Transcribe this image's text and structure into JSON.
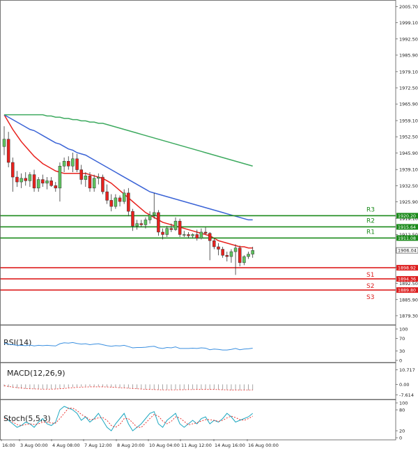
{
  "chart_data": {
    "type": "candlestick",
    "price_axis": {
      "ylim": [
        1877.0,
        2007.0
      ],
      "ticks": [
        "2005.70",
        "1999.10",
        "1992.50",
        "1985.90",
        "1979.10",
        "1972.50",
        "1965.90",
        "1959.10",
        "1952.50",
        "1945.90",
        "1939.10",
        "1932.50",
        "1925.90",
        "1919.10",
        "1912.50",
        "1906.04",
        "1899.10",
        "1892.50",
        "1885.90",
        "1879.30"
      ],
      "current": "1906.04"
    },
    "x_axis_labels": [
      "16:00",
      "3 Aug 00:00",
      "4 Aug 08:00",
      "7 Aug 12:00",
      "8 Aug 20:00",
      "10 Aug 04:00",
      "11 Aug 12:00",
      "14 Aug 16:00",
      "16 Aug 00:00"
    ],
    "candles": [
      {
        "o": 1948.5,
        "h": 1956.8,
        "l": 1945.0,
        "c": 1951.5
      },
      {
        "o": 1951.5,
        "h": 1954.5,
        "l": 1940.0,
        "c": 1942.0
      },
      {
        "o": 1942.0,
        "h": 1944.0,
        "l": 1930.0,
        "c": 1936.0
      },
      {
        "o": 1936.0,
        "h": 1938.5,
        "l": 1932.0,
        "c": 1934.0
      },
      {
        "o": 1934.0,
        "h": 1937.5,
        "l": 1931.5,
        "c": 1935.5
      },
      {
        "o": 1935.5,
        "h": 1938.0,
        "l": 1932.5,
        "c": 1934.5
      },
      {
        "o": 1934.5,
        "h": 1938.0,
        "l": 1932.0,
        "c": 1937.0
      },
      {
        "o": 1937.0,
        "h": 1939.0,
        "l": 1930.0,
        "c": 1931.5
      },
      {
        "o": 1931.5,
        "h": 1936.0,
        "l": 1930.0,
        "c": 1935.0
      },
      {
        "o": 1935.0,
        "h": 1937.0,
        "l": 1932.0,
        "c": 1933.5
      },
      {
        "o": 1933.5,
        "h": 1936.0,
        "l": 1931.0,
        "c": 1934.5
      },
      {
        "o": 1934.5,
        "h": 1936.0,
        "l": 1932.0,
        "c": 1932.5
      },
      {
        "o": 1932.5,
        "h": 1934.0,
        "l": 1930.0,
        "c": 1931.5
      },
      {
        "o": 1931.5,
        "h": 1942.0,
        "l": 1926.0,
        "c": 1940.5
      },
      {
        "o": 1940.5,
        "h": 1944.0,
        "l": 1938.0,
        "c": 1942.5
      },
      {
        "o": 1942.5,
        "h": 1944.5,
        "l": 1939.0,
        "c": 1940.5
      },
      {
        "o": 1940.5,
        "h": 1946.0,
        "l": 1938.0,
        "c": 1943.5
      },
      {
        "o": 1943.5,
        "h": 1945.5,
        "l": 1938.0,
        "c": 1939.0
      },
      {
        "o": 1939.0,
        "h": 1941.0,
        "l": 1933.0,
        "c": 1935.0
      },
      {
        "o": 1935.0,
        "h": 1938.0,
        "l": 1932.0,
        "c": 1936.5
      },
      {
        "o": 1936.5,
        "h": 1938.0,
        "l": 1930.0,
        "c": 1931.5
      },
      {
        "o": 1931.5,
        "h": 1937.0,
        "l": 1930.0,
        "c": 1935.5
      },
      {
        "o": 1935.5,
        "h": 1937.5,
        "l": 1933.0,
        "c": 1936.0
      },
      {
        "o": 1936.0,
        "h": 1937.0,
        "l": 1929.0,
        "c": 1930.0
      },
      {
        "o": 1930.0,
        "h": 1933.0,
        "l": 1925.0,
        "c": 1926.5
      },
      {
        "o": 1926.5,
        "h": 1929.0,
        "l": 1922.0,
        "c": 1924.0
      },
      {
        "o": 1924.0,
        "h": 1929.0,
        "l": 1923.0,
        "c": 1927.5
      },
      {
        "o": 1927.5,
        "h": 1928.5,
        "l": 1924.0,
        "c": 1926.0
      },
      {
        "o": 1926.0,
        "h": 1931.0,
        "l": 1925.0,
        "c": 1929.5
      },
      {
        "o": 1929.5,
        "h": 1931.5,
        "l": 1920.0,
        "c": 1922.0
      },
      {
        "o": 1922.0,
        "h": 1923.0,
        "l": 1914.0,
        "c": 1916.0
      },
      {
        "o": 1916.0,
        "h": 1918.5,
        "l": 1914.5,
        "c": 1917.0
      },
      {
        "o": 1917.0,
        "h": 1918.5,
        "l": 1915.5,
        "c": 1916.5
      },
      {
        "o": 1916.5,
        "h": 1919.5,
        "l": 1915.0,
        "c": 1918.5
      },
      {
        "o": 1918.5,
        "h": 1922.0,
        "l": 1917.0,
        "c": 1920.5
      },
      {
        "o": 1920.5,
        "h": 1929.5,
        "l": 1919.0,
        "c": 1921.5
      },
      {
        "o": 1921.5,
        "h": 1922.5,
        "l": 1912.0,
        "c": 1913.5
      },
      {
        "o": 1913.5,
        "h": 1915.0,
        "l": 1910.5,
        "c": 1912.5
      },
      {
        "o": 1912.5,
        "h": 1916.0,
        "l": 1911.5,
        "c": 1915.0
      },
      {
        "o": 1915.0,
        "h": 1917.0,
        "l": 1913.5,
        "c": 1914.5
      },
      {
        "o": 1914.5,
        "h": 1919.5,
        "l": 1914.0,
        "c": 1918.0
      },
      {
        "o": 1918.0,
        "h": 1919.0,
        "l": 1911.5,
        "c": 1912.5
      },
      {
        "o": 1912.5,
        "h": 1914.0,
        "l": 1911.5,
        "c": 1912.5
      },
      {
        "o": 1912.5,
        "h": 1913.5,
        "l": 1911.0,
        "c": 1912.0
      },
      {
        "o": 1912.0,
        "h": 1913.0,
        "l": 1911.0,
        "c": 1912.5
      },
      {
        "o": 1912.5,
        "h": 1914.5,
        "l": 1910.0,
        "c": 1911.0
      },
      {
        "o": 1911.0,
        "h": 1915.0,
        "l": 1910.5,
        "c": 1913.5
      },
      {
        "o": 1913.5,
        "h": 1915.5,
        "l": 1912.5,
        "c": 1913.0
      },
      {
        "o": 1913.0,
        "h": 1913.5,
        "l": 1902.0,
        "c": 1910.0
      },
      {
        "o": 1910.0,
        "h": 1911.0,
        "l": 1906.5,
        "c": 1907.5
      },
      {
        "o": 1907.5,
        "h": 1909.0,
        "l": 1904.0,
        "c": 1906.5
      },
      {
        "o": 1906.5,
        "h": 1907.5,
        "l": 1903.0,
        "c": 1904.0
      },
      {
        "o": 1904.0,
        "h": 1905.5,
        "l": 1901.5,
        "c": 1903.5
      },
      {
        "o": 1903.5,
        "h": 1906.5,
        "l": 1901.0,
        "c": 1905.5
      },
      {
        "o": 1905.5,
        "h": 1908.5,
        "l": 1896.0,
        "c": 1907.0
      },
      {
        "o": 1907.0,
        "h": 1908.0,
        "l": 1899.5,
        "c": 1901.0
      },
      {
        "o": 1901.0,
        "h": 1904.0,
        "l": 1900.0,
        "c": 1903.5
      },
      {
        "o": 1903.5,
        "h": 1905.5,
        "l": 1902.5,
        "c": 1904.5
      },
      {
        "o": 1904.5,
        "h": 1907.5,
        "l": 1903.0,
        "c": 1906.0
      }
    ],
    "moving_averages": [
      {
        "color": "#e8211d",
        "values": [
          1961.5,
          1958.5,
          1955.5,
          1953.0,
          1950.5,
          1948.5,
          1946.5,
          1944.5,
          1943.0,
          1941.5,
          1940.5,
          1939.5,
          1938.5,
          1938.0,
          1937.5,
          1937.5,
          1937.5,
          1937.5,
          1937.5,
          1937.5,
          1937.0,
          1936.5,
          1936.0,
          1935.5,
          1934.5,
          1933.5,
          1932.0,
          1930.5,
          1929.0,
          1927.5,
          1926.0,
          1924.5,
          1923.0,
          1921.5,
          1920.5,
          1919.5,
          1918.5,
          1917.5,
          1917.0,
          1916.5,
          1916.0,
          1915.5,
          1915.0,
          1914.5,
          1914.0,
          1913.5,
          1913.0,
          1912.5,
          1912.0,
          1911.0,
          1910.0,
          1909.5,
          1909.0,
          1908.5,
          1908.0,
          1907.5,
          1907.5,
          1907.0,
          1907.0
        ]
      },
      {
        "color": "#3a63d6",
        "values": [
          1961.5,
          1960.5,
          1959.5,
          1958.5,
          1957.5,
          1956.5,
          1955.5,
          1955.0,
          1954.0,
          1953.0,
          1952.0,
          1951.0,
          1950.0,
          1949.5,
          1948.5,
          1947.5,
          1947.0,
          1946.0,
          1945.5,
          1945.0,
          1944.0,
          1943.0,
          1942.0,
          1941.0,
          1940.0,
          1939.0,
          1938.0,
          1937.0,
          1936.0,
          1935.0,
          1934.0,
          1933.0,
          1932.0,
          1931.0,
          1930.0,
          1929.5,
          1929.0,
          1928.5,
          1928.0,
          1927.5,
          1927.0,
          1926.5,
          1926.0,
          1925.5,
          1925.0,
          1924.5,
          1924.0,
          1923.5,
          1923.0,
          1922.5,
          1922.0,
          1921.5,
          1921.0,
          1920.5,
          1920.0,
          1919.5,
          1919.0,
          1918.5,
          1918.5
        ]
      },
      {
        "color": "#3daa5f",
        "values": [
          1961.5,
          1961.5,
          1961.5,
          1961.5,
          1961.5,
          1961.5,
          1961.5,
          1961.5,
          1961.5,
          1961.5,
          1961.0,
          1961.0,
          1960.5,
          1960.5,
          1960.0,
          1960.0,
          1959.5,
          1959.5,
          1959.0,
          1959.0,
          1958.5,
          1958.5,
          1958.0,
          1958.0,
          1957.5,
          1957.0,
          1956.5,
          1956.0,
          1955.5,
          1955.0,
          1954.5,
          1954.0,
          1953.5,
          1953.0,
          1952.5,
          1952.0,
          1951.5,
          1951.0,
          1950.5,
          1950.0,
          1949.5,
          1949.0,
          1948.5,
          1948.0,
          1947.5,
          1947.0,
          1946.5,
          1946.0,
          1945.5,
          1945.0,
          1944.5,
          1944.0,
          1943.5,
          1943.0,
          1942.5,
          1942.0,
          1941.5,
          1941.0,
          1940.5
        ]
      }
    ],
    "levels": [
      {
        "label": "R3",
        "value": 1920.2,
        "tag": "1920.20",
        "color": "#1a8a1a"
      },
      {
        "label": "R2",
        "value": 1915.64,
        "tag": "1915.64",
        "color": "#1a8a1a"
      },
      {
        "label": "R1",
        "value": 1911.08,
        "tag": "1911.08",
        "color": "#1a8a1a"
      },
      {
        "label": "S1",
        "value": 1898.92,
        "tag": "1898.92",
        "color": "#dd1e1e"
      },
      {
        "label": "S2",
        "value": 1894.36,
        "tag": "1894.36",
        "color": "#dd1e1e"
      },
      {
        "label": "S3",
        "value": 1889.8,
        "tag": "1889.80",
        "color": "#dd1e1e"
      }
    ],
    "rsi": {
      "title": "RSI(14)",
      "ticks": [
        "100",
        "70",
        "30",
        "0"
      ],
      "ylim": [
        0,
        100
      ],
      "values": [
        55,
        52,
        50,
        48,
        48,
        47,
        49,
        46,
        48,
        47,
        48,
        47,
        46,
        53,
        56,
        55,
        57,
        54,
        52,
        53,
        50,
        52,
        53,
        50,
        47,
        45,
        47,
        46,
        48,
        44,
        40,
        41,
        41,
        42,
        44,
        45,
        40,
        38,
        41,
        40,
        43,
        38,
        38,
        38,
        39,
        38,
        40,
        39,
        34,
        36,
        35,
        33,
        33,
        35,
        38,
        34,
        36,
        37,
        39
      ]
    },
    "macd": {
      "title": "MACD(12,26,9)",
      "ticks": [
        "10.717",
        "0.00",
        "-7.614"
      ],
      "ylim": [
        -9.5,
        12.5
      ],
      "hist": [
        -1.5,
        -2.0,
        -2.5,
        -2.8,
        -3.0,
        -3.2,
        -3.3,
        -3.4,
        -3.5,
        -3.5,
        -3.5,
        -3.4,
        -3.3,
        -3.0,
        -2.6,
        -2.3,
        -2.0,
        -1.8,
        -1.7,
        -1.6,
        -1.6,
        -1.6,
        -1.6,
        -1.7,
        -1.9,
        -2.1,
        -2.3,
        -2.5,
        -2.7,
        -2.9,
        -3.2,
        -3.4,
        -3.6,
        -3.7,
        -3.8,
        -3.9,
        -4.0,
        -4.0,
        -4.0,
        -4.0,
        -3.9,
        -3.9,
        -3.8,
        -3.8,
        -3.7,
        -3.7,
        -3.6,
        -3.6,
        -3.7,
        -3.8,
        -3.9,
        -4.0,
        -4.1,
        -4.2,
        -4.2,
        -4.3,
        -4.3,
        -4.3,
        -4.2
      ],
      "signal": [
        -1.0,
        -1.5,
        -2.0,
        -2.4,
        -2.7,
        -3.0,
        -3.2,
        -3.3,
        -3.4,
        -3.5,
        -3.5,
        -3.5,
        -3.4,
        -3.2,
        -3.0,
        -2.7,
        -2.4,
        -2.2,
        -2.0,
        -1.9,
        -1.8,
        -1.8,
        -1.8,
        -1.8,
        -1.9,
        -2.0,
        -2.2,
        -2.4,
        -2.6,
        -2.8,
        -3.0,
        -3.2,
        -3.4,
        -3.6,
        -3.7,
        -3.8,
        -3.9,
        -4.0,
        -4.0,
        -4.0,
        -4.0,
        -3.9,
        -3.9,
        -3.8,
        -3.8,
        -3.7,
        -3.7,
        -3.7,
        -3.7,
        -3.7,
        -3.8,
        -3.9,
        -4.0,
        -4.1,
        -4.1,
        -4.2,
        -4.2,
        -4.2,
        -4.2
      ]
    },
    "stoch": {
      "title": "Stoch(5,5,3)",
      "ticks": [
        "100",
        "80",
        "20",
        "0"
      ],
      "ylim": [
        0,
        100
      ],
      "k": [
        60,
        50,
        40,
        30,
        35,
        45,
        40,
        30,
        45,
        55,
        40,
        35,
        45,
        80,
        90,
        85,
        80,
        70,
        50,
        60,
        45,
        55,
        70,
        50,
        30,
        20,
        40,
        55,
        70,
        40,
        20,
        30,
        40,
        55,
        70,
        75,
        40,
        30,
        50,
        60,
        70,
        40,
        30,
        40,
        50,
        40,
        55,
        60,
        40,
        50,
        45,
        55,
        70,
        60,
        45,
        50,
        55,
        60,
        70
      ],
      "d": [
        55,
        52,
        45,
        38,
        35,
        38,
        40,
        38,
        40,
        45,
        45,
        42,
        42,
        55,
        70,
        85,
        85,
        78,
        67,
        60,
        52,
        53,
        57,
        58,
        50,
        35,
        30,
        38,
        55,
        55,
        43,
        30,
        30,
        42,
        55,
        67,
        62,
        48,
        40,
        47,
        60,
        57,
        47,
        37,
        40,
        43,
        48,
        52,
        52,
        50,
        47,
        50,
        57,
        62,
        58,
        52,
        50,
        55,
        62
      ]
    }
  }
}
